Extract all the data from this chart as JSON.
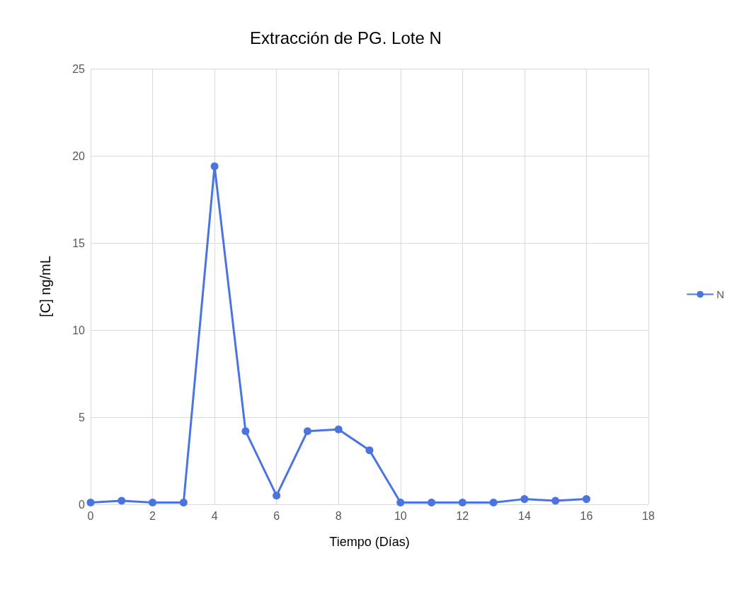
{
  "chart_data": {
    "type": "line",
    "title": "Extracción de PG. Lote N",
    "xlabel": "Tiempo (Días)",
    "ylabel": "[C] ng/mL",
    "x": [
      0,
      1,
      2,
      3,
      4,
      5,
      6,
      7,
      8,
      9,
      10,
      11,
      12,
      13,
      14,
      15,
      16
    ],
    "series": [
      {
        "name": "N",
        "color": "#4a74e0",
        "values": [
          0.1,
          0.2,
          0.1,
          0.1,
          19.4,
          4.2,
          0.5,
          4.2,
          4.3,
          3.1,
          0.1,
          0.1,
          0.1,
          0.1,
          0.3,
          0.2,
          0.3
        ]
      }
    ],
    "xlim": [
      0,
      18
    ],
    "xticks": [
      0,
      2,
      4,
      6,
      8,
      10,
      12,
      14,
      16,
      18
    ],
    "ylim": [
      0,
      25
    ],
    "yticks": [
      0,
      5,
      10,
      15,
      20,
      25
    ],
    "grid": true,
    "legend": "right",
    "marker": "circle",
    "line_style": "solid"
  }
}
